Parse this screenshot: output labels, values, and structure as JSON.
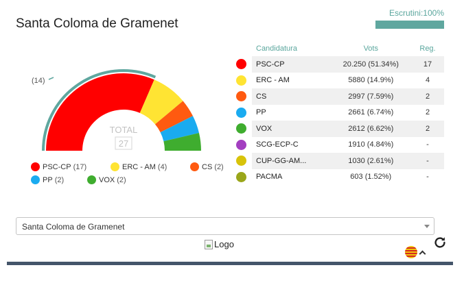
{
  "header": {
    "title": "Santa Coloma de Gramenet",
    "scrutiny_label": "Escrutini:100%",
    "scrutiny_progress": 1.0,
    "scrutiny_color": "#5fa79f"
  },
  "hemicycle": {
    "total_label": "TOTAL",
    "total_seats": "27",
    "majority_marker_label": "(14)",
    "majority_seats": 14,
    "arc_color": "#5fa79f"
  },
  "parties": [
    {
      "name": "PSC-CP",
      "votes": "20.250 (51.34%)",
      "seats": "17",
      "seat_count": 17,
      "color": "#ff0000"
    },
    {
      "name": "ERC - AM",
      "votes": "5880 (14.9%)",
      "seats": "4",
      "seat_count": 4,
      "color": "#ffe433"
    },
    {
      "name": "CS",
      "votes": "2997 (7.59%)",
      "seats": "2",
      "seat_count": 2,
      "color": "#ff5a10"
    },
    {
      "name": "PP",
      "votes": "2661 (6.74%)",
      "seats": "2",
      "seat_count": 2,
      "color": "#1aabf0"
    },
    {
      "name": "VOX",
      "votes": "2612 (6.62%)",
      "seats": "2",
      "seat_count": 2,
      "color": "#3fad2f"
    },
    {
      "name": "SCG-ECP-C",
      "votes": "1910 (4.84%)",
      "seats": "-",
      "seat_count": 0,
      "color": "#a33fc0"
    },
    {
      "name": "CUP-GG-AM...",
      "votes": "1030 (2.61%)",
      "seats": "-",
      "seat_count": 0,
      "color": "#d8c30a"
    },
    {
      "name": "PACMA",
      "votes": "603 (1.52%)",
      "seats": "-",
      "seat_count": 0,
      "color": "#9aa61a"
    }
  ],
  "legend": [
    {
      "name": "PSC-CP",
      "seats": "(17)",
      "color": "#ff0000"
    },
    {
      "name": "ERC - AM",
      "seats": "(4)",
      "color": "#ffe433"
    },
    {
      "name": "CS",
      "seats": "(2)",
      "color": "#ff5a10"
    },
    {
      "name": "PP",
      "seats": "(2)",
      "color": "#1aabf0"
    },
    {
      "name": "VOX",
      "seats": "(2)",
      "color": "#3fad2f"
    }
  ],
  "table": {
    "col_candidacy": "Candidatura",
    "col_votes": "Vots",
    "col_seats": "Reg."
  },
  "municipality_select": {
    "value": "Santa Coloma de Gramenet"
  },
  "logo": {
    "alt": "Logo"
  },
  "icons": {
    "refresh": "refresh-icon",
    "flag": "catalan-flag-icon",
    "caret": "chevron-up-icon"
  }
}
